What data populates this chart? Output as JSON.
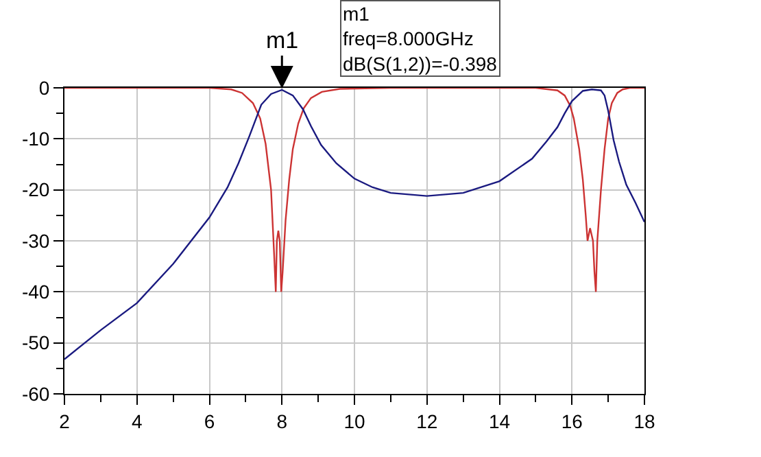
{
  "chart_data": {
    "type": "line",
    "xlim": [
      2,
      18
    ],
    "ylim": [
      -60,
      0
    ],
    "xticks": [
      2,
      {
        "value": 3,
        "label": null
      },
      4,
      {
        "value": 5,
        "label": null
      },
      6,
      {
        "value": 7,
        "label": null
      },
      8,
      {
        "value": 9,
        "label": null
      },
      10,
      {
        "value": 11,
        "label": null
      },
      12,
      {
        "value": 13,
        "label": null
      },
      14,
      {
        "value": 15,
        "label": null
      },
      16,
      {
        "value": 17,
        "label": null
      },
      18
    ],
    "yticks": [
      -60,
      {
        "value": -55,
        "label": null
      },
      -50,
      {
        "value": -45,
        "label": null
      },
      -40,
      {
        "value": -35,
        "label": null
      },
      -30,
      {
        "value": -25,
        "label": null
      },
      -20,
      {
        "value": -15,
        "label": null
      },
      -10,
      {
        "value": -5,
        "label": null
      },
      0
    ],
    "grid": true,
    "marker": "none",
    "line_style": "solid",
    "series": [
      {
        "color": "#cc3333",
        "x": [
          2,
          4,
          6,
          6.6,
          6.9,
          7.2,
          7.4,
          7.55,
          7.7,
          7.78,
          7.83,
          7.86,
          7.9,
          7.94,
          7.98,
          8.02,
          8.1,
          8.2,
          8.3,
          8.45,
          8.6,
          8.8,
          9.1,
          9.6,
          11,
          13,
          15,
          15.6,
          15.8,
          15.95,
          16.05,
          16.2,
          16.3,
          16.38,
          16.43,
          16.5,
          16.58,
          16.62,
          16.66,
          16.7,
          16.8,
          16.9,
          17.0,
          17.1,
          17.25,
          17.4,
          17.6,
          18
        ],
        "values": [
          0,
          0,
          0,
          -0.3,
          -1,
          -3,
          -6,
          -11,
          -20,
          -32,
          -40,
          -30,
          -28,
          -30,
          -40,
          -36,
          -26,
          -18,
          -12,
          -7,
          -4,
          -2,
          -0.8,
          -0.2,
          0,
          0,
          0,
          -0.5,
          -1.5,
          -3.5,
          -6,
          -12,
          -18,
          -25,
          -30,
          -27.5,
          -30,
          -36,
          -40,
          -30,
          -20,
          -12,
          -6,
          -3,
          -1,
          -0.3,
          0,
          0
        ]
      },
      {
        "color": "#1a1a80",
        "x": [
          2,
          3,
          4,
          5,
          6,
          6.5,
          6.8,
          7.1,
          7.43,
          7.7,
          8,
          8.3,
          8.58,
          8.8,
          9.08,
          9.5,
          10,
          10.5,
          11,
          12,
          13,
          14,
          14.9,
          15.3,
          15.6,
          15.8,
          16.0,
          16.3,
          16.55,
          16.8,
          16.9,
          17.0,
          17.15,
          17.3,
          17.5,
          17.75,
          18
        ],
        "values": [
          -53.2,
          -47.5,
          -42.2,
          -34.5,
          -25.4,
          -19.5,
          -14.8,
          -9.5,
          -3.3,
          -1.2,
          -0.4,
          -1.5,
          -4.2,
          -7.5,
          -11.2,
          -14.8,
          -17.8,
          -19.5,
          -20.6,
          -21.2,
          -20.6,
          -18.3,
          -13.9,
          -10.5,
          -7.7,
          -5,
          -2.6,
          -0.6,
          -0.3,
          -0.5,
          -1.5,
          -4.5,
          -10.3,
          -14.5,
          -19,
          -22.5,
          -26.3
        ]
      }
    ],
    "annotations": [
      {
        "text": "m1",
        "x": 8,
        "y": -0.4
      },
      "m1",
      "freq=8.000GHz",
      "dB(S(1,2))=-0.398"
    ]
  }
}
